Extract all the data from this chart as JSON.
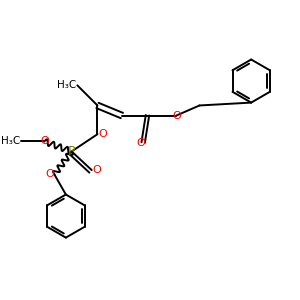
{
  "background": "#ffffff",
  "bond_color": "#000000",
  "oxygen_color": "#ff0000",
  "phosphorus_color": "#808000",
  "lw": 1.4,
  "figsize": [
    3.0,
    3.0
  ],
  "dpi": 100,
  "xlim": [
    0,
    10
  ],
  "ylim": [
    0,
    10
  ]
}
